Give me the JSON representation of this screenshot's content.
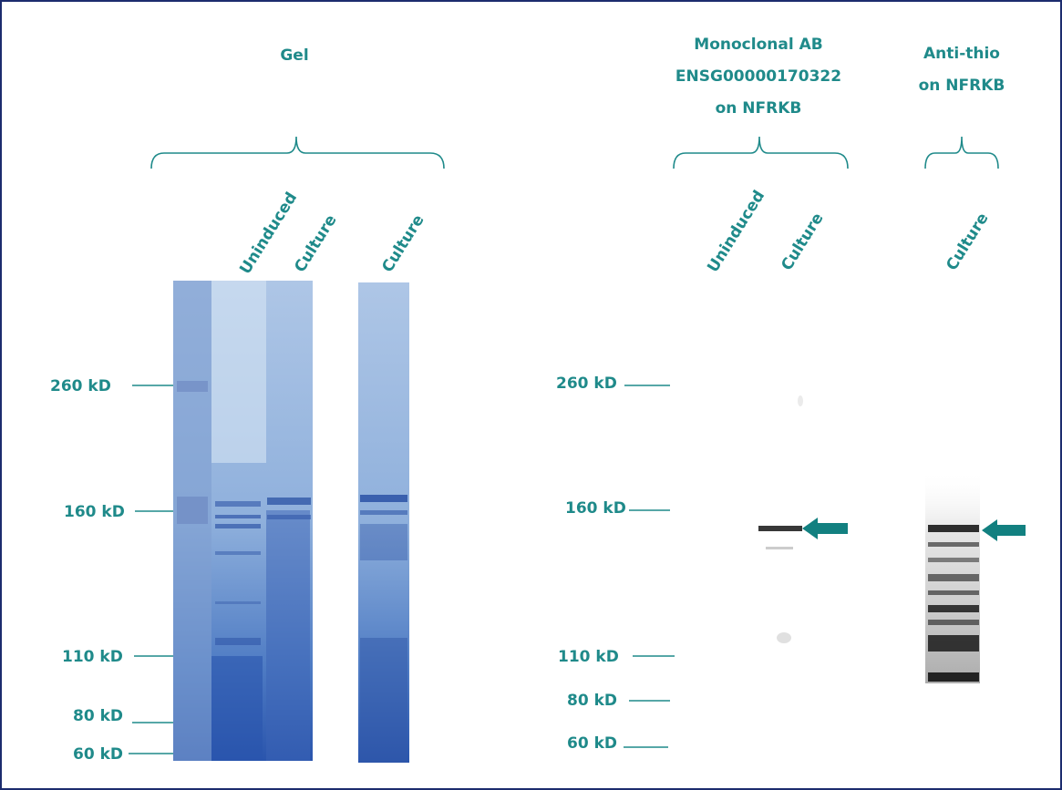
{
  "panels": [
    {
      "title": [
        "Gel"
      ],
      "lanes": [
        "Uninduced",
        "Culture",
        "Culture"
      ],
      "markers": [
        "260 kD",
        "160 kD",
        "110 kD",
        "80 kD",
        "60 kD"
      ]
    },
    {
      "title": [
        "Monoclonal AB",
        "ENSG00000170322",
        "on NFRKB"
      ],
      "lanes": [
        "Uninduced",
        "Culture"
      ],
      "markers": [
        "260 kD",
        "160 kD",
        "110 kD",
        "80 kD",
        "60 kD"
      ]
    },
    {
      "title": [
        "Anti-thio",
        "on NFRKB"
      ],
      "lanes": [
        "Culture"
      ]
    }
  ]
}
